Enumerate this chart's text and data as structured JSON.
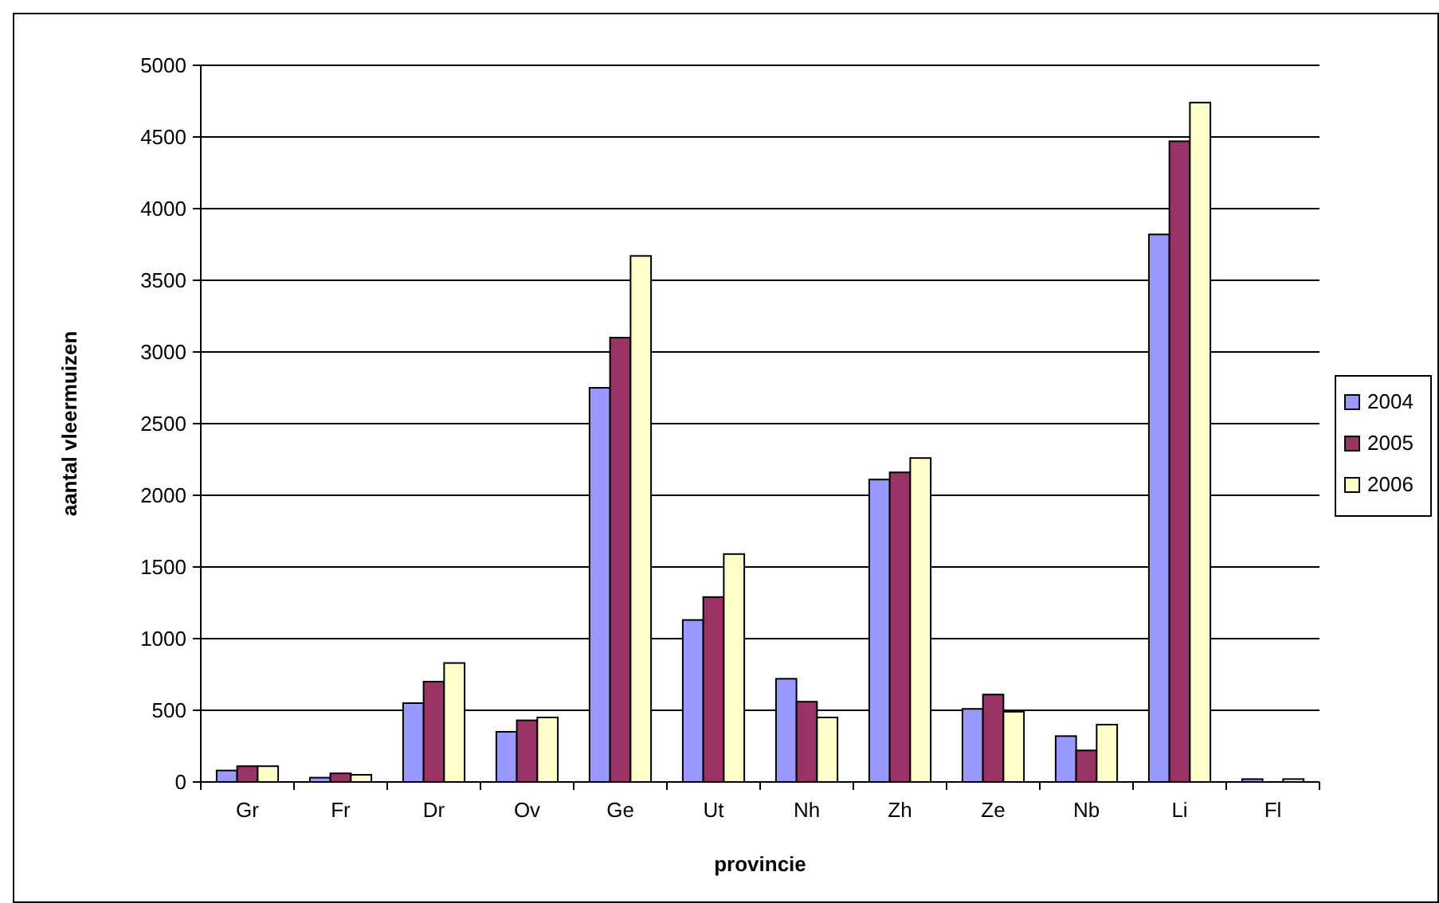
{
  "chart_data": {
    "type": "bar",
    "xlabel": "provincie",
    "ylabel": "aantal vleermuizen",
    "categories": [
      "Gr",
      "Fr",
      "Dr",
      "Ov",
      "Ge",
      "Ut",
      "Nh",
      "Zh",
      "Ze",
      "Nb",
      "Li",
      "Fl"
    ],
    "series": [
      {
        "name": "2004",
        "color": "#9999ff",
        "values": [
          80,
          30,
          550,
          350,
          2750,
          1130,
          720,
          2110,
          510,
          320,
          3820,
          20
        ]
      },
      {
        "name": "2005",
        "color": "#993366",
        "values": [
          110,
          60,
          700,
          430,
          3100,
          1290,
          560,
          2160,
          610,
          220,
          4470,
          0
        ]
      },
      {
        "name": "2006",
        "color": "#ffffcc",
        "values": [
          110,
          50,
          830,
          450,
          3670,
          1590,
          450,
          2260,
          490,
          400,
          4740,
          20
        ]
      }
    ],
    "ylim": [
      0,
      5000
    ],
    "yticks": [
      0,
      500,
      1000,
      1500,
      2000,
      2500,
      3000,
      3500,
      4000,
      4500,
      5000
    ],
    "grid": "y",
    "legend": "right"
  }
}
